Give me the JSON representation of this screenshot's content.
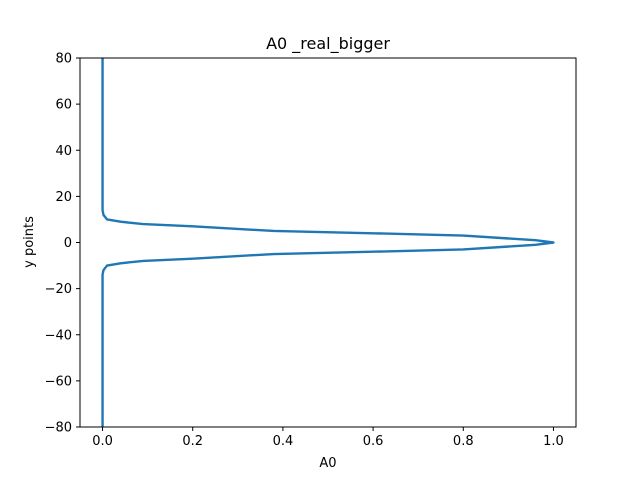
{
  "chart_data": {
    "type": "line",
    "title": "A0 _real_bigger",
    "xlabel": "A0",
    "ylabel": "y points",
    "xlim": [
      -0.05,
      1.05
    ],
    "ylim": [
      -80,
      80
    ],
    "x_ticks": [
      0.0,
      0.2,
      0.4,
      0.6,
      0.8,
      1.0
    ],
    "x_tick_labels": [
      "0.0",
      "0.2",
      "0.4",
      "0.6",
      "0.8",
      "1.0"
    ],
    "y_ticks": [
      -80,
      -60,
      -40,
      -20,
      0,
      20,
      40,
      60,
      80
    ],
    "y_tick_labels": [
      "−80",
      "−60",
      "−40",
      "−20",
      "0",
      "20",
      "40",
      "60",
      "80"
    ],
    "grid": false,
    "series": [
      {
        "color": "#1f77b4",
        "x": [
          0.0,
          0.0,
          0.0,
          0.002,
          0.01,
          0.04,
          0.09,
          0.2,
          0.38,
          0.6,
          0.8,
          0.96,
          1.0,
          0.96,
          0.8,
          0.6,
          0.38,
          0.2,
          0.09,
          0.04,
          0.01,
          0.002,
          0.0,
          0.0,
          0.0
        ],
        "y": [
          -80,
          -40,
          -14,
          -12,
          -10,
          -9,
          -8,
          -7,
          -5,
          -4,
          -3,
          -1,
          0,
          1,
          3,
          4,
          5,
          7,
          8,
          9,
          10,
          12,
          14,
          40,
          80
        ]
      }
    ]
  }
}
